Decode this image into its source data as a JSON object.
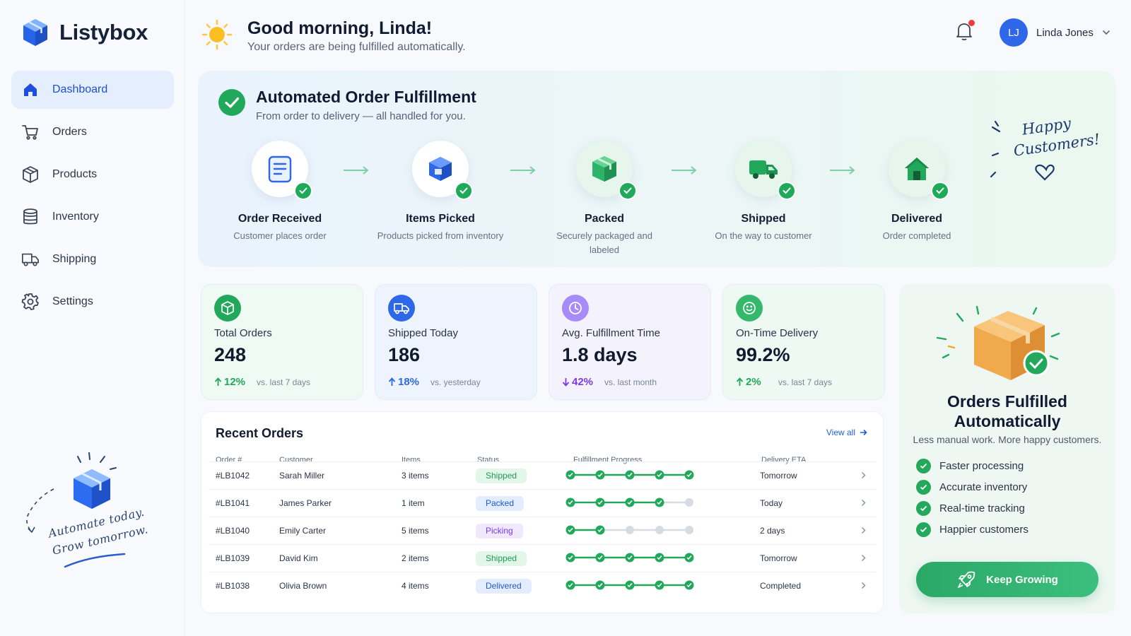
{
  "app": {
    "name": "Listybox"
  },
  "sidebar": {
    "items": [
      {
        "label": "Dashboard",
        "icon": "home-icon",
        "active": true
      },
      {
        "label": "Orders",
        "icon": "cart-icon"
      },
      {
        "label": "Products",
        "icon": "box-icon"
      },
      {
        "label": "Inventory",
        "icon": "database-icon"
      },
      {
        "label": "Shipping",
        "icon": "truck-icon"
      },
      {
        "label": "Settings",
        "icon": "gear-icon"
      }
    ],
    "tagline_line1": "Automate today.",
    "tagline_line2": "Grow tomorrow."
  },
  "header": {
    "greeting": "Good morning, Linda!",
    "subtitle": "Your orders are being fulfilled automatically.",
    "user": {
      "initials": "LJ",
      "name": "Linda Jones"
    }
  },
  "hero": {
    "title": "Automated Order Fulfillment",
    "subtitle": "From order to delivery — all handled for you.",
    "steps": [
      {
        "title": "Order Received",
        "desc": "Customer places order",
        "icon": "clipboard-icon"
      },
      {
        "title": "Items Picked",
        "desc": "Products picked from inventory",
        "icon": "cube-icon"
      },
      {
        "title": "Packed",
        "desc": "Securely packaged and labeled",
        "icon": "package-icon"
      },
      {
        "title": "Shipped",
        "desc": "On the way to customer",
        "icon": "truck-icon"
      },
      {
        "title": "Delivered",
        "desc": "Order completed",
        "icon": "house-icon"
      }
    ],
    "happy_line1": "Happy",
    "happy_line2": "Customers!"
  },
  "stats": [
    {
      "label": "Total Orders",
      "value": "248",
      "delta": "12%",
      "direction": "up",
      "compare": "vs. last 7 days",
      "color": "#1faa59",
      "icon": "cube-icon"
    },
    {
      "label": "Shipped Today",
      "value": "186",
      "delta": "18%",
      "direction": "up",
      "compare": "vs. yesterday",
      "color": "#2e67e8",
      "icon": "truck-icon"
    },
    {
      "label": "Avg. Fulfillment Time",
      "value": "1.8 days",
      "delta": "42%",
      "direction": "down",
      "compare": "vs. last month",
      "color": "#8b5cf6",
      "icon": "clock-icon"
    },
    {
      "label": "On-Time Delivery",
      "value": "99.2%",
      "delta": "2%",
      "direction": "up",
      "compare": "vs. last 7 days",
      "color": "#1faa59",
      "icon": "smile-icon"
    }
  ],
  "orders": {
    "title": "Recent Orders",
    "view_all": "View all",
    "columns": [
      "Order #",
      "Customer",
      "Items",
      "Status",
      "Fulfillment Progress",
      "Delivery ETA"
    ],
    "rows": [
      {
        "id": "#LB1042",
        "customer": "Sarah Miller",
        "items": "3 items",
        "status": "Shipped",
        "progress": 5,
        "eta": "Tomorrow"
      },
      {
        "id": "#LB1041",
        "customer": "James Parker",
        "items": "1 item",
        "status": "Packed",
        "progress": 4,
        "eta": "Today"
      },
      {
        "id": "#LB1040",
        "customer": "Emily Carter",
        "items": "5 items",
        "status": "Picking",
        "progress": 2,
        "eta": "2 days"
      },
      {
        "id": "#LB1039",
        "customer": "David Kim",
        "items": "2 items",
        "status": "Shipped",
        "progress": 5,
        "eta": "Tomorrow"
      },
      {
        "id": "#LB1038",
        "customer": "Olivia Brown",
        "items": "4 items",
        "status": "Delivered",
        "progress": 5,
        "eta": "Completed"
      }
    ],
    "status_colors": {
      "Shipped": {
        "bg": "#e3f6ea",
        "fg": "#1f9a52"
      },
      "Packed": {
        "bg": "#e3edfd",
        "fg": "#2058d6"
      },
      "Picking": {
        "bg": "#f0e8fd",
        "fg": "#7c3aed"
      },
      "Delivered": {
        "bg": "#e3edfd",
        "fg": "#2058d6"
      }
    }
  },
  "promo": {
    "title_line1": "Orders Fulfilled",
    "title_line2": "Automatically",
    "subtitle": "Less manual work. More happy customers.",
    "features": [
      "Faster processing",
      "Accurate inventory",
      "Real-time tracking",
      "Happier customers"
    ],
    "button": "Keep Growing"
  },
  "colors": {
    "accent": "#2e67e8",
    "success": "#1faa59",
    "danger": "#ef3b3b"
  }
}
